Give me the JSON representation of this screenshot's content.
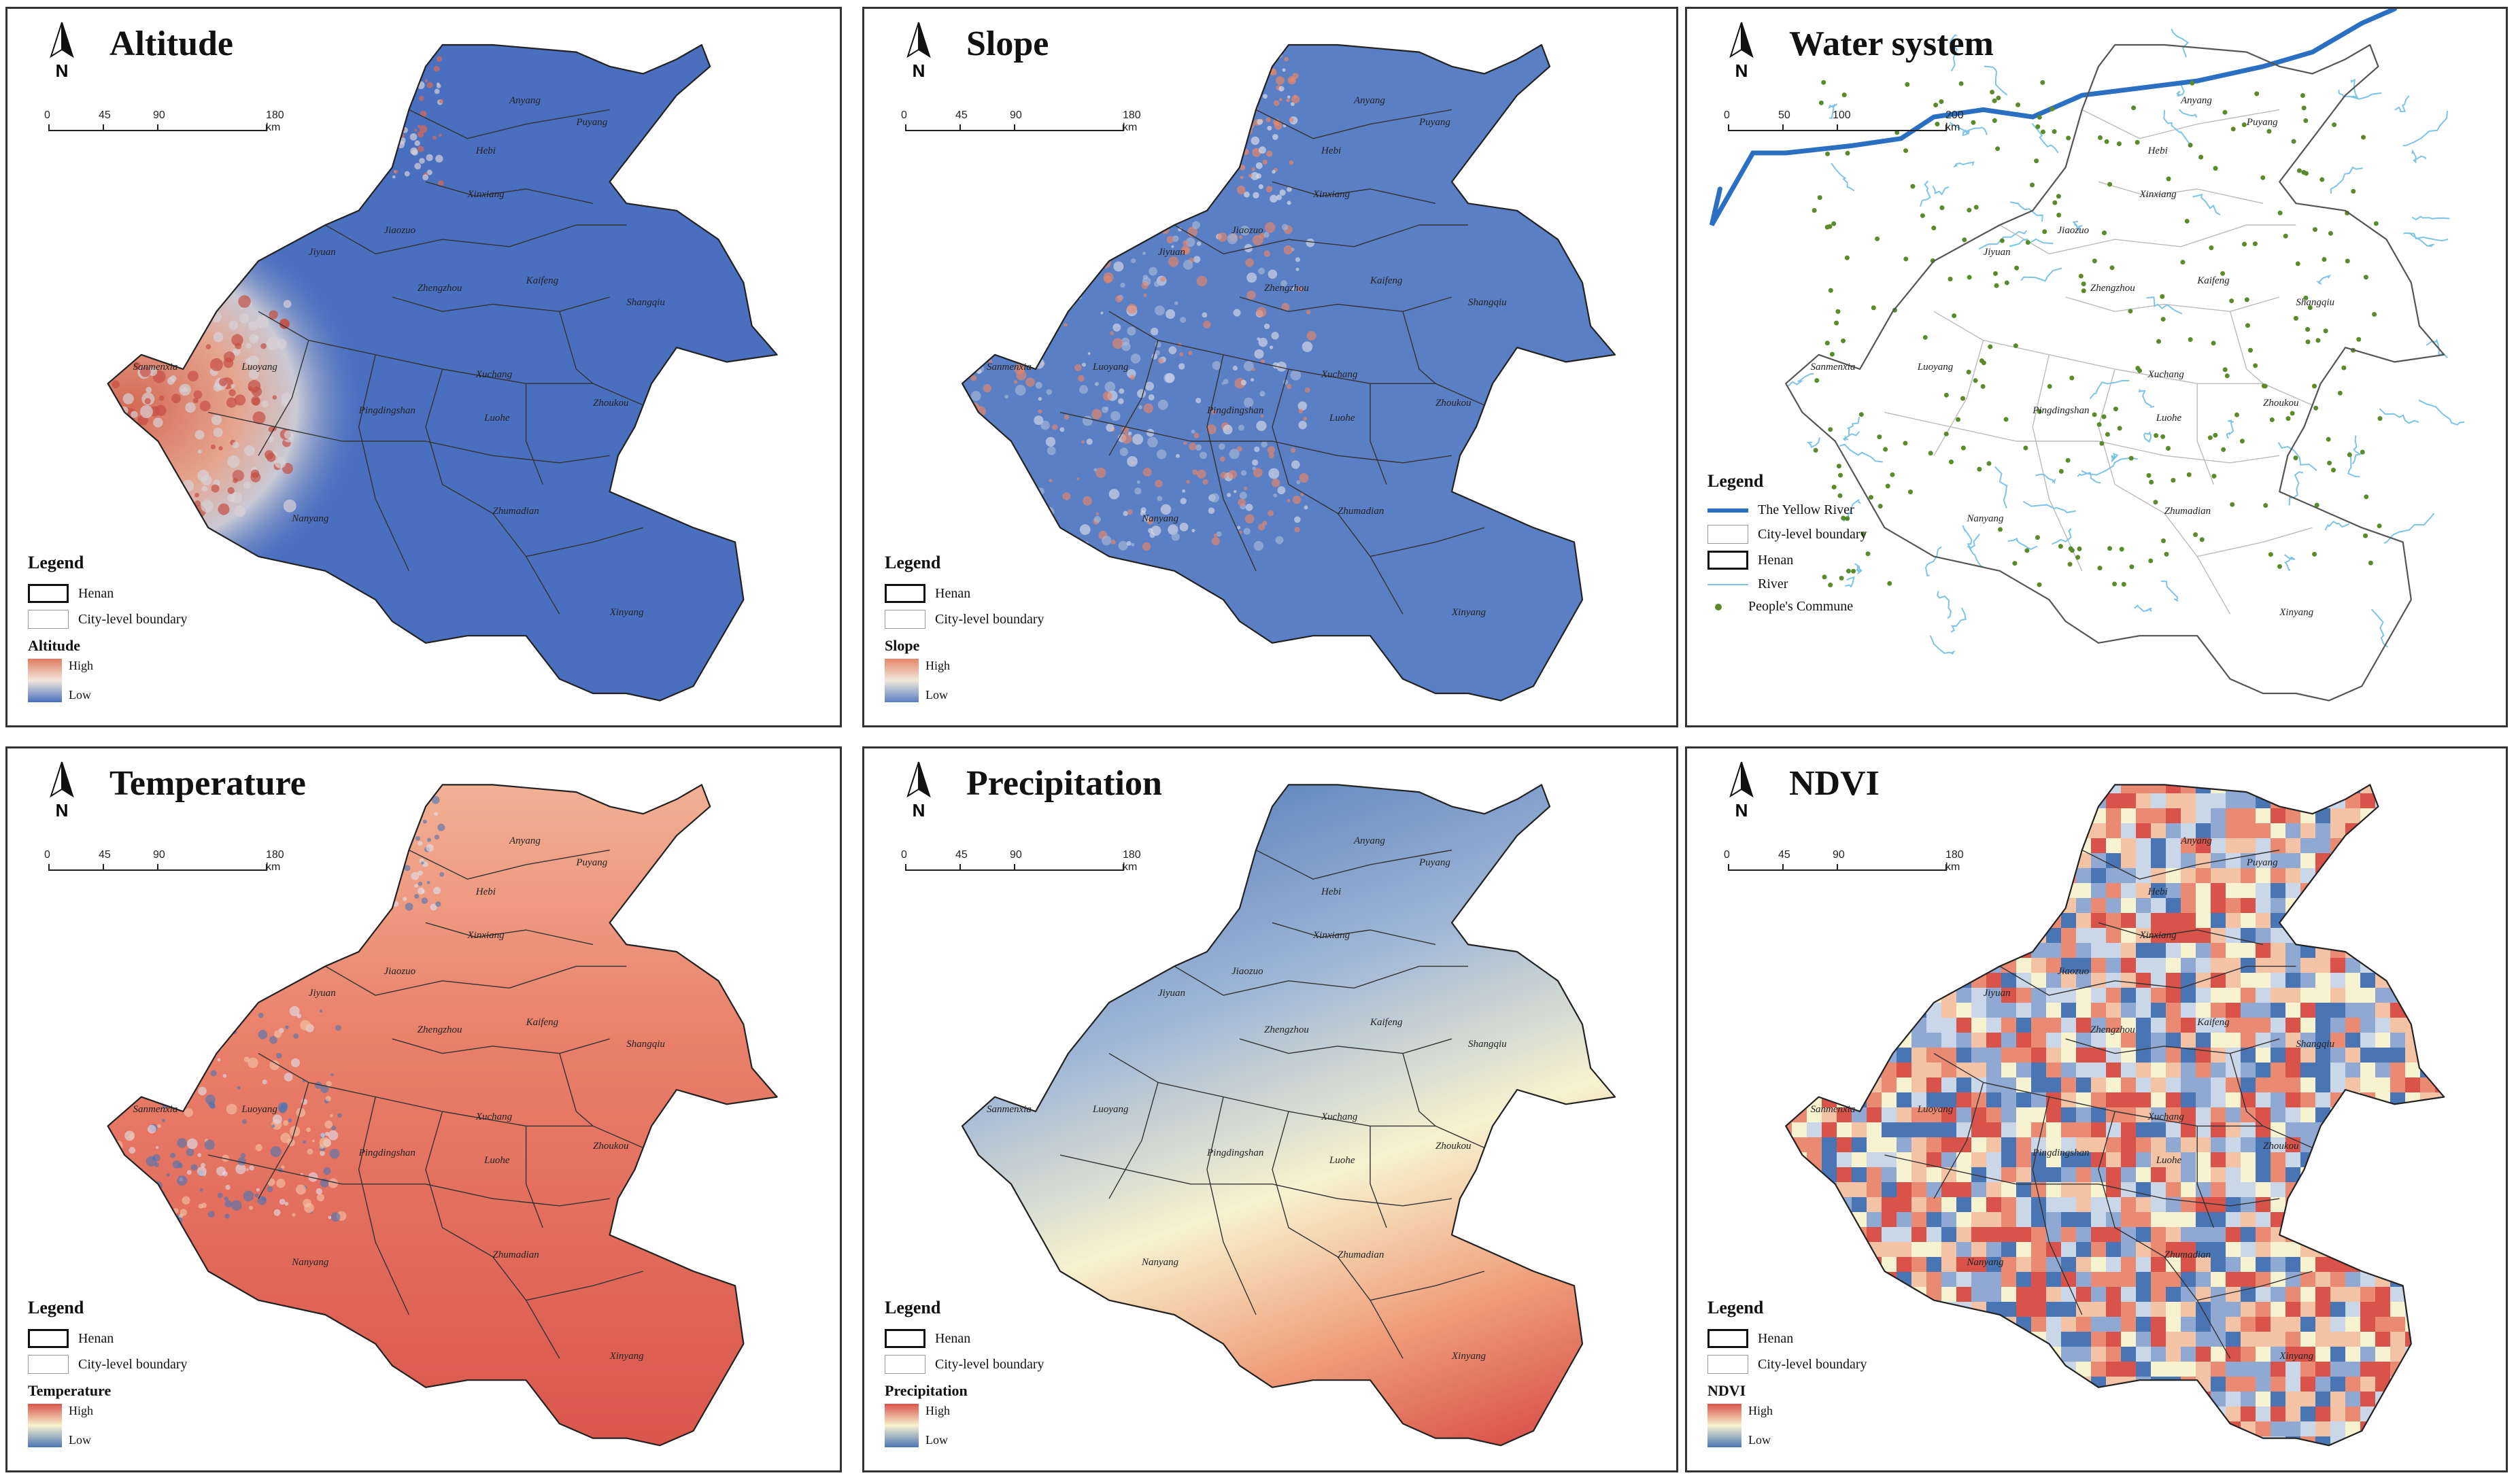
{
  "panels": [
    {
      "title": "Altitude",
      "legend_title": "Legend",
      "legend_henan": "Henan",
      "legend_city": "City-level boundary",
      "ramp_title": "Altitude",
      "ramp_high": "High",
      "ramp_low": "Low",
      "scale": [
        "0",
        "45",
        "90",
        "180 km"
      ]
    },
    {
      "title": "Slope",
      "legend_title": "Legend",
      "legend_henan": "Henan",
      "legend_city": "City-level boundary",
      "ramp_title": "Slope",
      "ramp_high": "High",
      "ramp_low": "Low",
      "scale": [
        "0",
        "45",
        "90",
        "180 km"
      ]
    },
    {
      "title": "Water system",
      "legend_title": "Legend",
      "legend_yellow": "The Yellow River",
      "legend_city": "City-level boundary",
      "legend_henan": "Henan",
      "legend_river": "River",
      "legend_commune": "People's Commune",
      "scale": [
        "0",
        "50",
        "100",
        "200 km"
      ]
    },
    {
      "title": "Temperature",
      "legend_title": "Legend",
      "legend_henan": "Henan",
      "legend_city": "City-level boundary",
      "ramp_title": "Temperature",
      "ramp_high": "High",
      "ramp_low": "Low",
      "scale": [
        "0",
        "45",
        "90",
        "180 km"
      ]
    },
    {
      "title": "Precipitation",
      "legend_title": "Legend",
      "legend_henan": "Henan",
      "legend_city": "City-level boundary",
      "ramp_title": "Precipitation",
      "ramp_high": "High",
      "ramp_low": "Low",
      "scale": [
        "0",
        "45",
        "90",
        "180 km"
      ]
    },
    {
      "title": "NDVI",
      "legend_title": "Legend",
      "legend_henan": "Henan",
      "legend_city": "City-level boundary",
      "ramp_title": "NDVI",
      "ramp_high": "High",
      "ramp_low": "Low",
      "scale": [
        "0",
        "45",
        "90",
        "180 km"
      ]
    }
  ],
  "north_label": "N",
  "cities": [
    "Anyang",
    "Puyang",
    "Hebi",
    "Xinxiang",
    "Jiaozuo",
    "Jiyuan",
    "Zhengzhou",
    "Kaifeng",
    "Shangqiu",
    "Sanmenxia",
    "Luoyang",
    "Xuchang",
    "Pingdingshan",
    "Luohe",
    "Zhoukou",
    "Nanyang",
    "Zhumadian",
    "Xinyang"
  ],
  "colors": {
    "altitude_low": "#4a6fbf",
    "altitude_high": "#e07a5f",
    "slope_low": "#5b7fc4",
    "slope_high": "#e8866a",
    "temp_high": "#d9534a",
    "temp_low": "#4a75b5",
    "precip_low": "#4a75b5",
    "precip_high": "#d9534a",
    "river": "#7ec4e6",
    "yellow_river": "#2b6fc2",
    "commune": "#5a8a2a"
  }
}
